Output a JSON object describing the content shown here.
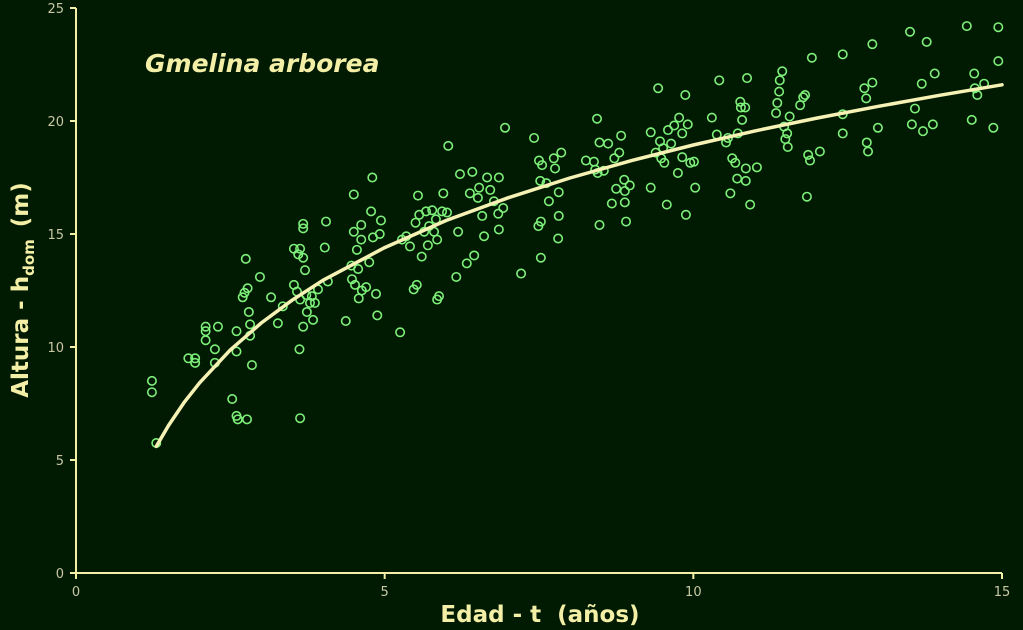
{
  "chart_data": {
    "type": "scatter",
    "title": "Gmelina arborea",
    "xlabel": "Edad - t  (años)",
    "ylabel": {
      "text": "Altura - h",
      "subscript": "dom",
      "suffix": "(m)"
    },
    "xlim": [
      0,
      15
    ],
    "xticks": [
      0,
      5,
      10,
      15
    ],
    "ylim": [
      0,
      25
    ],
    "yticks": [
      0,
      5,
      10,
      15,
      20,
      25
    ],
    "background": "#011a02",
    "axis_color": "#f4efa6",
    "tick_label_color": "#c9c7a4",
    "points": {
      "color": "#7ef07a",
      "x": [
        1.23,
        1.23,
        1.3,
        1.82,
        1.93,
        1.93,
        2.1,
        2.1,
        2.3,
        2.1,
        2.25,
        2.25,
        2.53,
        2.6,
        2.62,
        2.77,
        2.6,
        2.6,
        2.7,
        2.73,
        2.78,
        2.75,
        2.8,
        2.82,
        2.82,
        2.85,
        2.98,
        3.16,
        3.27,
        3.35,
        3.53,
        3.6,
        3.63,
        3.68,
        3.68,
        3.68,
        3.53,
        3.58,
        3.63,
        3.71,
        3.73,
        3.79,
        3.68,
        3.74,
        3.84,
        3.62,
        3.63,
        3.82,
        3.87,
        3.92,
        4.03,
        4.05,
        4.08,
        4.37,
        4.46,
        4.47,
        4.5,
        4.5,
        4.52,
        4.55,
        4.57,
        4.58,
        4.62,
        4.62,
        4.63,
        4.7,
        4.75,
        4.78,
        4.8,
        4.81,
        4.86,
        4.88,
        4.94,
        4.92,
        5.25,
        5.28,
        5.35,
        5.41,
        5.47,
        5.52,
        5.5,
        5.54,
        5.56,
        5.6,
        5.64,
        5.67,
        5.7,
        5.72,
        5.77,
        5.8,
        5.83,
        5.85,
        5.85,
        5.88,
        5.93,
        5.95,
        6.03,
        6.01,
        6.16,
        6.19,
        6.22,
        6.33,
        6.38,
        6.42,
        6.45,
        6.51,
        6.53,
        6.58,
        6.61,
        6.66,
        6.71,
        6.77,
        6.84,
        6.85,
        6.85,
        6.92,
        6.95,
        7.21,
        7.42,
        7.49,
        7.5,
        7.52,
        7.53,
        7.53,
        7.55,
        7.62,
        7.66,
        7.74,
        7.76,
        7.81,
        7.82,
        7.82,
        7.86,
        8.26,
        8.39,
        8.41,
        8.44,
        8.45,
        8.48,
        8.48,
        8.55,
        8.62,
        8.68,
        8.72,
        8.75,
        8.8,
        8.83,
        8.88,
        8.89,
        8.89,
        8.91,
        8.97,
        9.31,
        9.31,
        9.39,
        9.43,
        9.46,
        9.48,
        9.51,
        9.53,
        9.57,
        9.59,
        9.64,
        9.69,
        9.75,
        9.77,
        9.82,
        9.82,
        9.87,
        9.88,
        9.91,
        9.95,
        10.01,
        10.03,
        10.3,
        10.38,
        10.42,
        10.53,
        10.56,
        10.6,
        10.63,
        10.68,
        10.71,
        10.72,
        10.76,
        10.77,
        10.79,
        10.84,
        10.85,
        10.85,
        10.87,
        10.92,
        11.03,
        11.34,
        11.36,
        11.39,
        11.4,
        11.44,
        11.47,
        11.49,
        11.52,
        11.53,
        11.56,
        11.73,
        11.78,
        11.81,
        11.84,
        11.86,
        11.89,
        11.92,
        12.05,
        12.42,
        12.42,
        12.42,
        12.77,
        12.8,
        12.81,
        12.83,
        12.9,
        12.9,
        12.99,
        13.51,
        13.54,
        13.59,
        13.7,
        13.72,
        13.78,
        13.88,
        13.91,
        14.43,
        14.51,
        14.55,
        14.56,
        14.6,
        14.71,
        14.86,
        14.94,
        14.94
      ],
      "y": [
        8.5,
        8.0,
        5.75,
        9.5,
        9.5,
        9.3,
        10.9,
        10.7,
        10.9,
        10.3,
        9.9,
        9.3,
        7.7,
        6.95,
        6.8,
        6.8,
        9.8,
        10.7,
        12.2,
        12.4,
        12.6,
        13.9,
        11.55,
        11.0,
        10.5,
        9.2,
        13.1,
        12.2,
        11.05,
        11.8,
        14.35,
        14.1,
        14.35,
        15.25,
        15.45,
        13.95,
        12.75,
        12.45,
        12.1,
        13.4,
        12.3,
        11.95,
        10.9,
        11.55,
        11.2,
        9.9,
        6.85,
        12.25,
        11.95,
        12.55,
        14.4,
        15.55,
        12.9,
        11.15,
        13.6,
        13.0,
        16.75,
        15.1,
        12.75,
        14.3,
        13.45,
        12.15,
        14.75,
        15.4,
        12.5,
        12.65,
        13.75,
        16.0,
        17.5,
        14.85,
        12.35,
        11.4,
        15.6,
        15.0,
        10.65,
        14.75,
        14.9,
        14.45,
        12.55,
        12.75,
        15.5,
        16.7,
        15.85,
        14.0,
        15.1,
        16.0,
        14.5,
        15.35,
        16.05,
        15.1,
        15.65,
        14.75,
        12.1,
        12.25,
        16.0,
        16.8,
        18.9,
        15.95,
        13.1,
        15.1,
        17.65,
        13.7,
        16.8,
        17.75,
        14.05,
        16.6,
        17.05,
        15.8,
        14.9,
        17.5,
        16.95,
        16.45,
        15.9,
        17.5,
        15.2,
        16.15,
        19.7,
        13.25,
        19.25,
        15.35,
        18.25,
        17.35,
        13.95,
        15.55,
        18.05,
        17.25,
        16.45,
        18.35,
        17.9,
        14.8,
        15.8,
        16.85,
        18.6,
        18.25,
        18.2,
        17.85,
        20.1,
        17.7,
        15.4,
        19.05,
        17.8,
        19.0,
        16.35,
        18.35,
        17.0,
        18.6,
        19.35,
        17.4,
        16.9,
        16.4,
        15.55,
        17.15,
        19.5,
        17.05,
        18.6,
        21.45,
        19.1,
        18.35,
        18.8,
        18.15,
        16.3,
        19.6,
        19.0,
        19.8,
        17.7,
        20.15,
        18.4,
        19.45,
        21.15,
        15.85,
        19.85,
        18.15,
        18.2,
        17.05,
        20.15,
        19.4,
        21.8,
        19.05,
        19.25,
        16.8,
        18.35,
        18.15,
        17.45,
        19.45,
        20.85,
        20.6,
        20.05,
        20.6,
        17.9,
        17.35,
        21.9,
        16.3,
        17.95,
        20.35,
        20.8,
        21.3,
        21.8,
        22.2,
        19.75,
        19.2,
        19.45,
        18.85,
        20.2,
        20.7,
        21.05,
        21.15,
        16.65,
        18.5,
        18.25,
        22.8,
        18.65,
        22.95,
        20.3,
        19.45,
        21.45,
        21.0,
        19.05,
        18.65,
        23.4,
        21.7,
        19.7,
        23.95,
        19.85,
        20.55,
        21.65,
        19.55,
        23.5,
        19.85,
        22.1,
        24.2,
        20.05,
        22.1,
        21.45,
        21.15,
        21.65,
        19.7,
        24.15,
        22.65
      ]
    },
    "curve": {
      "color": "#f6f1b4",
      "x": [
        1.3,
        1.5,
        1.75,
        2,
        2.5,
        3,
        3.5,
        4,
        5,
        6,
        7,
        8,
        9,
        10,
        11,
        12,
        13,
        14,
        15
      ],
      "y": [
        5.6,
        6.53,
        7.54,
        8.41,
        9.87,
        11.06,
        12.07,
        12.95,
        14.4,
        15.6,
        16.6,
        17.48,
        18.25,
        18.94,
        19.56,
        20.13,
        20.65,
        21.14,
        21.6
      ]
    }
  }
}
